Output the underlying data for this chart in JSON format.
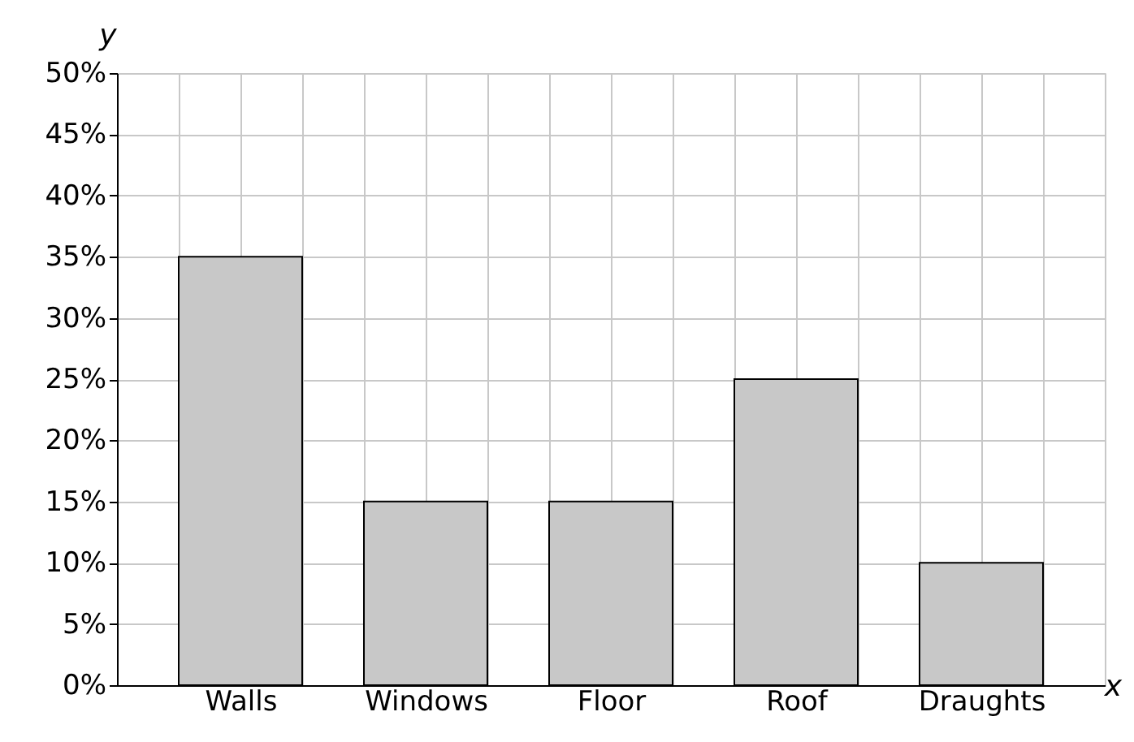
{
  "chart_data": {
    "type": "bar",
    "xlabel": "x",
    "ylabel": "y",
    "categories": [
      "Walls",
      "Windows",
      "Floor",
      "Roof",
      "Draughts"
    ],
    "values": [
      35,
      15,
      15,
      25,
      10
    ],
    "color": "#c8c8c8",
    "ylim": [
      0,
      50
    ],
    "yticks": [
      {
        "value": 0,
        "label": "0%"
      },
      {
        "value": 5,
        "label": "5%"
      },
      {
        "value": 10,
        "label": "10%"
      },
      {
        "value": 15,
        "label": "15%"
      },
      {
        "value": 20,
        "label": "20%"
      },
      {
        "value": 25,
        "label": "25%"
      },
      {
        "value": 30,
        "label": "30%"
      },
      {
        "value": 35,
        "label": "35%"
      },
      {
        "value": 40,
        "label": "40%"
      },
      {
        "value": 45,
        "label": "45%"
      },
      {
        "value": 50,
        "label": "50%"
      }
    ],
    "grid": true
  }
}
